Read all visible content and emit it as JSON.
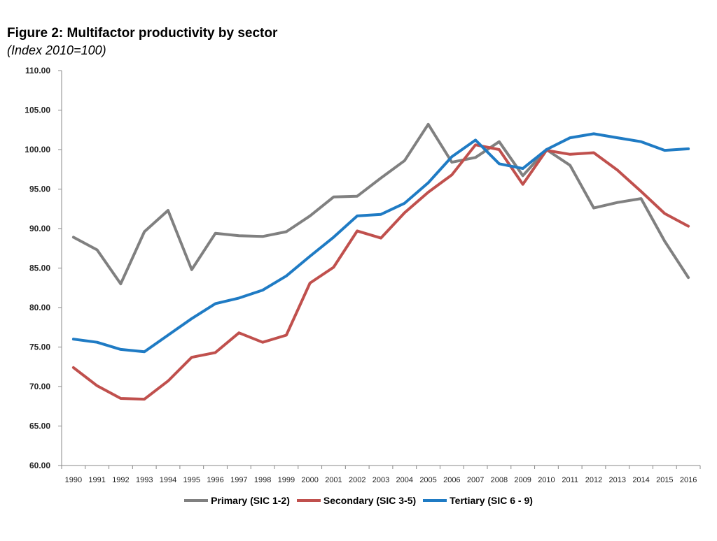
{
  "chart_data": {
    "type": "line",
    "title": "Figure 2: Multifactor productivity by sector",
    "subtitle": "(Index 2010=100)",
    "xlabel": "",
    "ylabel": "",
    "ylim": [
      60,
      110
    ],
    "yticks": [
      "60.00",
      "65.00",
      "70.00",
      "75.00",
      "80.00",
      "85.00",
      "90.00",
      "95.00",
      "100.00",
      "105.00",
      "110.00"
    ],
    "categories": [
      "1990",
      "1991",
      "1992",
      "1993",
      "1994",
      "1995",
      "1996",
      "1997",
      "1998",
      "1999",
      "2000",
      "2001",
      "2002",
      "2003",
      "2004",
      "2005",
      "2006",
      "2007",
      "2008",
      "2009",
      "2010",
      "2011",
      "2012",
      "2013",
      "2014",
      "2015",
      "2016"
    ],
    "grid": false,
    "legend_position": "bottom",
    "series": [
      {
        "name": "Primary (SIC 1-2)",
        "color": "#808080",
        "values": [
          88.9,
          87.3,
          83.0,
          89.6,
          92.3,
          84.8,
          89.4,
          89.1,
          89.0,
          89.6,
          91.6,
          94.0,
          94.1,
          96.4,
          98.6,
          103.2,
          98.4,
          99.0,
          101.0,
          96.7,
          100.0,
          98.0,
          92.6,
          93.3,
          93.8,
          88.4,
          83.8
        ]
      },
      {
        "name": "Secondary (SIC 3-5)",
        "color": "#c0504d",
        "values": [
          72.4,
          70.1,
          68.5,
          68.4,
          70.7,
          73.7,
          74.3,
          76.8,
          75.6,
          76.5,
          83.1,
          85.1,
          89.7,
          88.8,
          92.0,
          94.6,
          96.8,
          100.6,
          100.0,
          95.6,
          99.9,
          99.4,
          99.6,
          97.4,
          94.7,
          91.9,
          90.3
        ]
      },
      {
        "name": "Tertiary (SIC 6 - 9)",
        "color": "#1f7bc4",
        "values": [
          76.0,
          75.6,
          74.7,
          74.4,
          76.5,
          78.6,
          80.5,
          81.2,
          82.2,
          84.0,
          86.5,
          88.9,
          91.6,
          91.8,
          93.2,
          95.8,
          99.1,
          101.2,
          98.2,
          97.6,
          100.0,
          101.5,
          102.0,
          101.5,
          101.0,
          99.9,
          100.1
        ]
      }
    ]
  }
}
